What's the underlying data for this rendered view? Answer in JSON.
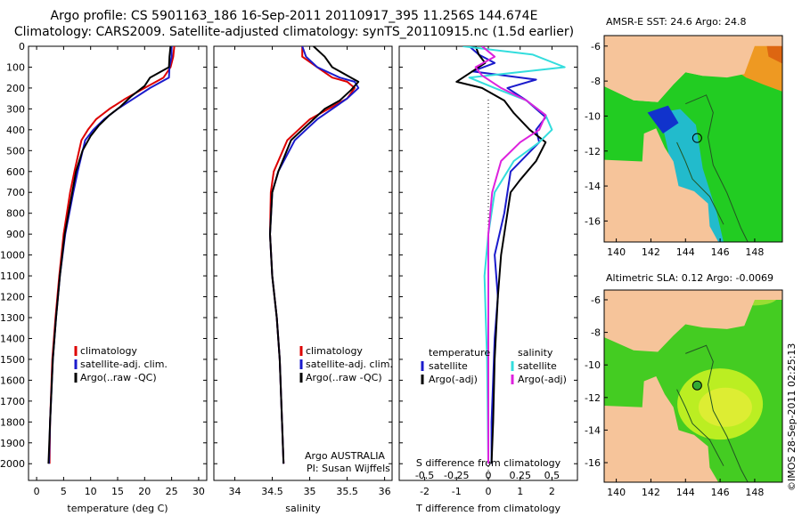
{
  "header": {
    "title_line1": "Argo profile: CS 5901163_186 16-Sep-2011 20110917_395 11.256S 144.674E",
    "title_line2": "Climatology: CARS2009. Satellite-adjusted climatology: synTS_20110915.nc (1.5d earlier)"
  },
  "colors": {
    "climatology": "#dd0000",
    "satellite": "#1b1bcc",
    "argo": "#000000",
    "sal_sat": "#33dddd",
    "sal_argo": "#dd22dd"
  },
  "depth_axis": {
    "ticks": [
      0,
      100,
      200,
      300,
      400,
      500,
      600,
      700,
      800,
      900,
      1000,
      1100,
      1200,
      1300,
      1400,
      1500,
      1600,
      1700,
      1800,
      1900,
      2000
    ],
    "range": [
      0,
      2080
    ]
  },
  "chart_data": [
    {
      "type": "line",
      "id": "temperature",
      "xlabel": "temperature (deg C)",
      "ylabel": "depth",
      "xlim": [
        -1.5,
        31.5
      ],
      "xticks": [
        0,
        5,
        10,
        15,
        20,
        25,
        30
      ],
      "ylim": [
        0,
        2080
      ],
      "legend": [
        "climatology",
        "satellite-adj. clim.",
        "Argo(..raw -QC)"
      ],
      "series": [
        {
          "name": "climatology",
          "color": "red",
          "x": [
            25.5,
            25.3,
            24.8,
            23.5,
            20.0,
            16.5,
            13.5,
            11.0,
            9.5,
            8.3,
            7.0,
            6.2,
            5.0,
            4.2,
            3.5,
            2.9,
            2.5,
            2.4
          ],
          "y": [
            0,
            50,
            100,
            150,
            200,
            250,
            300,
            350,
            400,
            450,
            600,
            700,
            900,
            1100,
            1300,
            1500,
            1800,
            2000
          ]
        },
        {
          "name": "satellite-adj. clim.",
          "color": "blue",
          "x": [
            25.0,
            25.0,
            24.6,
            24.5,
            21.0,
            18.0,
            15.0,
            12.5,
            10.5,
            9.0,
            7.6,
            6.8,
            5.3,
            4.3,
            3.6,
            3.0,
            2.5,
            2.3
          ],
          "y": [
            0,
            50,
            100,
            150,
            200,
            250,
            300,
            350,
            400,
            450,
            600,
            700,
            900,
            1100,
            1300,
            1500,
            1800,
            2000
          ]
        },
        {
          "name": "Argo(..raw -QC)",
          "color": "black",
          "x": [
            24.8,
            24.6,
            24.5,
            21.0,
            20.0,
            17.5,
            15.5,
            13.5,
            11.5,
            10.0,
            8.5,
            7.3,
            6.6,
            5.2,
            4.3,
            3.6,
            3.0,
            2.5,
            2.2
          ],
          "y": [
            0,
            50,
            100,
            150,
            190,
            240,
            290,
            330,
            380,
            430,
            500,
            600,
            700,
            900,
            1100,
            1300,
            1500,
            1800,
            2000
          ]
        }
      ]
    },
    {
      "type": "line",
      "id": "salinity",
      "xlabel": "salinity",
      "ylabel": "depth",
      "xlim": [
        33.72,
        36.1
      ],
      "xticks": [
        34,
        34.5,
        35,
        35.5,
        36
      ],
      "ylim": [
        0,
        2080
      ],
      "legend": [
        "climatology",
        "satellite-adj. clim.",
        "Argo(..raw -QC)"
      ],
      "annotation_line1": "Argo AUSTRALIA",
      "annotation_line2": "PI: Susan Wijffels",
      "series": [
        {
          "name": "climatology",
          "color": "red",
          "x": [
            34.9,
            34.9,
            35.1,
            35.3,
            35.5,
            35.6,
            35.5,
            35.25,
            35.0,
            34.85,
            34.7,
            34.52,
            34.48,
            34.47,
            34.5,
            34.56,
            34.6,
            34.63,
            34.65
          ],
          "y": [
            0,
            50,
            100,
            150,
            170,
            200,
            250,
            300,
            350,
            400,
            450,
            600,
            700,
            900,
            1100,
            1300,
            1500,
            1800,
            2000
          ]
        },
        {
          "name": "satellite-adj. clim.",
          "color": "blue",
          "x": [
            34.9,
            34.95,
            35.1,
            35.4,
            35.6,
            35.65,
            35.5,
            35.3,
            35.1,
            34.95,
            34.8,
            34.58,
            34.5,
            34.47,
            34.5,
            34.56,
            34.6,
            34.63,
            34.65
          ],
          "y": [
            0,
            50,
            100,
            150,
            170,
            200,
            250,
            300,
            350,
            400,
            450,
            600,
            700,
            900,
            1100,
            1300,
            1500,
            1800,
            2000
          ]
        },
        {
          "name": "Argo(..raw -QC)",
          "color": "black",
          "x": [
            35.05,
            35.2,
            35.3,
            35.55,
            35.65,
            35.55,
            35.4,
            35.2,
            35.05,
            34.9,
            34.75,
            34.58,
            34.5,
            34.47,
            34.5,
            34.56,
            34.6,
            34.63,
            34.65
          ],
          "y": [
            0,
            50,
            100,
            150,
            170,
            210,
            260,
            300,
            350,
            400,
            450,
            600,
            700,
            900,
            1100,
            1300,
            1500,
            1800,
            2000
          ]
        }
      ]
    },
    {
      "type": "line",
      "id": "differences",
      "xlabel": "T difference from climatology",
      "ylabel": "depth",
      "xlim": [
        -2.8,
        2.8
      ],
      "xticks": [
        -2,
        -1,
        0,
        1,
        2
      ],
      "x2label": "S difference from climatology",
      "x2ticks": [
        -0.5,
        -0.25,
        0,
        0.25,
        0.5
      ],
      "x2ticklabels": [
        "-0.5",
        "-0.25",
        "0",
        "0.25",
        "0.5"
      ],
      "ylim": [
        0,
        2080
      ],
      "legend_temperature": [
        "temperature",
        "satellite",
        "Argo(-adj)"
      ],
      "legend_salinity": [
        "salinity",
        "satellite",
        "Argo(-adj)"
      ],
      "series": [
        {
          "name": "T satellite",
          "color": "blue",
          "x": [
            -0.6,
            -0.3,
            0.2,
            -0.5,
            1.5,
            0.6,
            1.2,
            1.8,
            1.5,
            1.6,
            0.7,
            0.5,
            0.2,
            0.3,
            0.2,
            0.15,
            0.1,
            0.1
          ],
          "y": [
            0,
            40,
            80,
            120,
            160,
            200,
            260,
            340,
            400,
            460,
            600,
            800,
            1000,
            1200,
            1400,
            1600,
            1800,
            2000
          ]
        },
        {
          "name": "T Argo(-adj)",
          "color": "black",
          "x": [
            -0.4,
            -0.3,
            -0.1,
            -1.0,
            -0.2,
            0.5,
            0.8,
            1.3,
            1.8,
            1.5,
            1.0,
            0.7,
            0.6,
            0.4,
            0.3,
            0.2,
            0.15,
            0.1
          ],
          "y": [
            0,
            40,
            80,
            170,
            200,
            260,
            320,
            400,
            460,
            550,
            640,
            700,
            800,
            1000,
            1200,
            1500,
            1800,
            2000
          ]
        },
        {
          "name": "S satellite",
          "color": "cyan",
          "x": [
            -0.2,
            0.35,
            0.6,
            -0.15,
            0.05,
            0.3,
            0.45,
            0.5,
            0.4,
            0.2,
            0.05,
            0.0,
            -0.03,
            -0.02,
            -0.01,
            0.0
          ],
          "y": [
            0,
            40,
            100,
            150,
            200,
            260,
            330,
            400,
            460,
            550,
            700,
            900,
            1100,
            1300,
            1500,
            2000
          ]
        },
        {
          "name": "S Argo(-adj)",
          "color": "magenta",
          "x": [
            -0.05,
            0.05,
            -0.1,
            -0.05,
            0.1,
            0.3,
            0.45,
            0.4,
            0.25,
            0.1,
            0.03,
            0.0,
            0.0,
            0.0,
            0.0
          ],
          "y": [
            0,
            50,
            100,
            140,
            200,
            260,
            330,
            400,
            460,
            550,
            700,
            900,
            1200,
            1500,
            2000
          ]
        }
      ]
    },
    {
      "type": "heatmap",
      "id": "sst_map",
      "title": "AMSR-E SST: 24.6  Argo: 24.8",
      "xticks": [
        140,
        142,
        144,
        146,
        148
      ],
      "yticks": [
        -6,
        -8,
        -10,
        -12,
        -14,
        -16
      ],
      "argo_position": [
        144.674,
        -11.256
      ]
    },
    {
      "type": "heatmap",
      "id": "sla_map",
      "title": "Altimetric SLA: 0.12  Argo: -0.0069",
      "xticks": [
        140,
        142,
        144,
        146,
        148
      ],
      "yticks": [
        -6,
        -8,
        -10,
        -12,
        -14,
        -16
      ],
      "argo_position": [
        144.674,
        -11.256
      ]
    }
  ],
  "footer": {
    "stamp": "©IMOS 28-Sep-2011 02:25:13"
  }
}
